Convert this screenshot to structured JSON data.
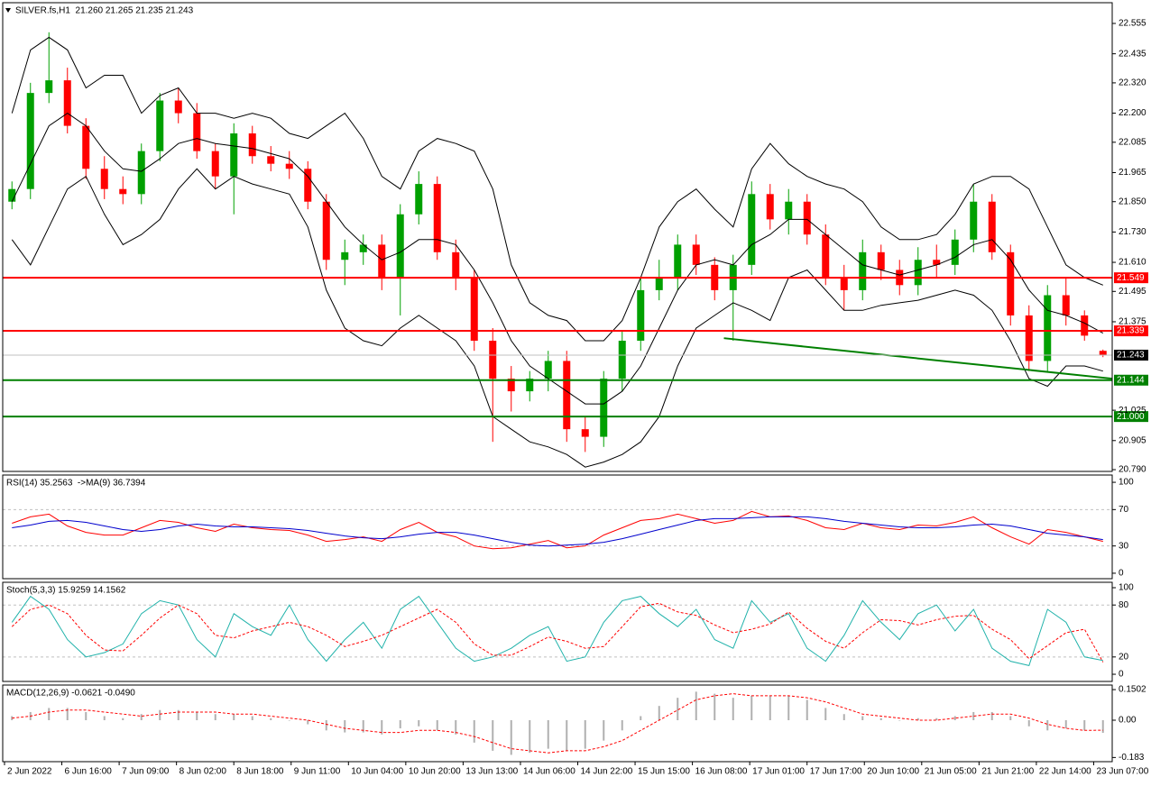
{
  "chart_data": [
    {
      "type": "candlestick",
      "title": "SILVER.fs,H1  21.260 21.265 21.235 21.243",
      "up_color": "#00a000",
      "down_color": "#ff0000",
      "open": [
        21.85,
        21.9,
        22.28,
        22.33,
        22.15,
        21.98,
        21.9,
        21.88,
        22.05,
        22.25,
        22.2,
        22.05,
        21.95,
        22.12,
        22.03,
        22.0,
        21.98,
        21.85,
        21.62,
        21.65,
        21.68,
        21.55,
        21.8,
        21.92,
        21.65,
        21.55,
        21.3,
        21.15,
        21.1,
        21.15,
        21.22,
        20.95,
        20.92,
        21.15,
        21.3,
        21.5,
        21.55,
        21.68,
        21.6,
        21.5,
        21.6,
        21.88,
        21.78,
        21.85,
        21.72,
        21.55,
        21.5,
        21.65,
        21.58,
        21.52,
        21.62,
        21.6,
        21.7,
        21.85,
        21.65,
        21.4,
        21.22,
        21.48,
        21.4,
        21.26
      ],
      "high": [
        21.93,
        22.32,
        22.52,
        22.38,
        22.18,
        22.03,
        21.95,
        22.08,
        22.28,
        22.3,
        22.24,
        22.08,
        22.16,
        22.15,
        22.07,
        22.05,
        22.01,
        21.88,
        21.7,
        21.72,
        21.72,
        21.84,
        21.97,
        21.95,
        21.7,
        21.58,
        21.35,
        21.2,
        21.18,
        21.26,
        21.26,
        21.0,
        21.18,
        21.34,
        21.55,
        21.62,
        21.72,
        21.72,
        21.63,
        21.64,
        21.93,
        21.92,
        21.9,
        21.88,
        21.76,
        21.6,
        21.7,
        21.68,
        21.62,
        21.67,
        21.68,
        21.74,
        21.92,
        21.88,
        21.68,
        21.44,
        21.52,
        21.55,
        21.42,
        21.265
      ],
      "low": [
        21.82,
        21.86,
        22.24,
        22.12,
        21.94,
        21.86,
        21.84,
        21.84,
        22.01,
        22.16,
        22.02,
        21.9,
        21.8,
        22.0,
        21.97,
        21.94,
        21.82,
        21.58,
        21.52,
        21.6,
        21.5,
        21.4,
        21.76,
        21.62,
        21.5,
        21.26,
        20.9,
        21.02,
        21.06,
        21.1,
        20.9,
        20.86,
        20.88,
        21.1,
        21.26,
        21.46,
        21.5,
        21.56,
        21.46,
        21.3,
        21.56,
        21.74,
        21.72,
        21.68,
        21.52,
        21.42,
        21.46,
        21.54,
        21.48,
        21.48,
        21.55,
        21.56,
        21.65,
        21.62,
        21.36,
        21.18,
        21.18,
        21.36,
        21.3,
        21.235
      ],
      "close": [
        21.9,
        22.28,
        22.33,
        22.15,
        21.98,
        21.9,
        21.88,
        22.05,
        22.25,
        22.2,
        22.05,
        21.95,
        22.12,
        22.03,
        22.0,
        21.98,
        21.85,
        21.62,
        21.65,
        21.68,
        21.55,
        21.8,
        21.92,
        21.65,
        21.55,
        21.3,
        21.15,
        21.1,
        21.15,
        21.22,
        20.95,
        20.92,
        21.15,
        21.3,
        21.5,
        21.55,
        21.68,
        21.6,
        21.5,
        21.6,
        21.88,
        21.78,
        21.85,
        21.72,
        21.55,
        21.5,
        21.65,
        21.58,
        21.52,
        21.62,
        21.6,
        21.7,
        21.85,
        21.65,
        21.4,
        21.22,
        21.48,
        21.4,
        21.32,
        21.243
      ],
      "series": [
        {
          "color": "#000000",
          "values": [
            22.2,
            22.45,
            22.5,
            22.45,
            22.3,
            22.35,
            22.35,
            22.2,
            22.27,
            22.3,
            22.2,
            22.2,
            22.18,
            22.2,
            22.18,
            22.12,
            22.1,
            22.15,
            22.2,
            22.1,
            21.95,
            21.9,
            22.05,
            22.1,
            22.08,
            22.05,
            21.9,
            21.6,
            21.45,
            21.4,
            21.38,
            21.3,
            21.3,
            21.38,
            21.55,
            21.75,
            21.85,
            21.9,
            21.82,
            21.75,
            21.98,
            22.08,
            22.0,
            21.95,
            21.92,
            21.9,
            21.85,
            21.75,
            21.7,
            21.7,
            21.72,
            21.8,
            21.92,
            21.95,
            21.95,
            21.9,
            21.75,
            21.6,
            21.55,
            21.52
          ]
        },
        {
          "color": "#000000",
          "values": [
            21.85,
            22.0,
            22.15,
            22.2,
            22.15,
            22.05,
            21.98,
            21.97,
            22.02,
            22.08,
            22.1,
            22.08,
            22.07,
            22.06,
            22.04,
            22.02,
            21.95,
            21.85,
            21.75,
            21.68,
            21.62,
            21.65,
            21.7,
            21.7,
            21.68,
            21.58,
            21.45,
            21.3,
            21.2,
            21.15,
            21.1,
            21.05,
            21.05,
            21.1,
            21.2,
            21.35,
            21.5,
            21.6,
            21.62,
            21.6,
            21.68,
            21.72,
            21.78,
            21.78,
            21.72,
            21.66,
            21.6,
            21.58,
            21.56,
            21.58,
            21.6,
            21.63,
            21.68,
            21.7,
            21.62,
            21.5,
            21.42,
            21.4,
            21.37,
            21.33
          ]
        },
        {
          "color": "#000000",
          "values": [
            21.7,
            21.6,
            21.75,
            21.9,
            21.95,
            21.8,
            21.68,
            21.72,
            21.78,
            21.9,
            21.98,
            21.9,
            21.95,
            21.92,
            21.9,
            21.88,
            21.75,
            21.5,
            21.35,
            21.3,
            21.28,
            21.35,
            21.4,
            21.35,
            21.3,
            21.2,
            21.0,
            20.95,
            20.9,
            20.88,
            20.85,
            20.8,
            20.82,
            20.85,
            20.9,
            21.0,
            21.2,
            21.35,
            21.4,
            21.45,
            21.42,
            21.38,
            21.55,
            21.58,
            21.5,
            21.42,
            21.42,
            21.44,
            21.45,
            21.46,
            21.48,
            21.5,
            21.48,
            21.42,
            21.3,
            21.15,
            21.12,
            21.2,
            21.2,
            21.18
          ]
        }
      ],
      "hlines": [
        {
          "value": 21.549,
          "color": "#ff0000"
        },
        {
          "value": 21.339,
          "color": "#ff0000"
        },
        {
          "value": 21.144,
          "color": "#008000"
        },
        {
          "value": {
            "value": 21.0,
            "label": "21.000"
          },
          "color": "#008000"
        }
      ],
      "trendline": {
        "x": [
          38.5,
          59.5
        ],
        "y": [
          21.31,
          21.15
        ],
        "color": "#008000"
      },
      "last": 21.243,
      "ylim": [
        20.783,
        22.637
      ],
      "yticks": [
        22.555,
        22.435,
        {
          "value": 22.32,
          "label": "22.320"
        },
        {
          "value": 22.2,
          "label": "22.200"
        },
        22.085,
        21.965,
        {
          "value": 21.85,
          "label": "21.850"
        },
        {
          "value": 21.73,
          "label": "21.730"
        },
        {
          "value": 21.61,
          "label": "21.610"
        },
        21.495,
        21.375,
        {
          "value": 21.025,
          "label": "21.025"
        },
        20.905,
        {
          "value": 20.79,
          "label": "20.790"
        }
      ]
    },
    {
      "type": "line",
      "title": "RSI(14) 35.2563  ->MA(9) 36.7394",
      "series": [
        {
          "color": "#ff0000",
          "values": [
            55,
            62,
            65,
            52,
            45,
            42,
            42,
            50,
            58,
            56,
            50,
            46,
            54,
            50,
            48,
            47,
            42,
            35,
            37,
            40,
            35,
            48,
            56,
            45,
            40,
            30,
            27,
            28,
            32,
            36,
            28,
            30,
            42,
            50,
            58,
            60,
            65,
            60,
            55,
            58,
            68,
            62,
            63,
            58,
            50,
            48,
            55,
            50,
            48,
            53,
            52,
            56,
            62,
            50,
            40,
            32,
            48,
            45,
            40,
            35
          ]
        },
        {
          "color": "#0000cd",
          "values": [
            50,
            53,
            57,
            58,
            56,
            52,
            48,
            46,
            48,
            52,
            54,
            52,
            51,
            51,
            50,
            49,
            47,
            44,
            41,
            39,
            38,
            40,
            43,
            45,
            45,
            42,
            38,
            34,
            31,
            30,
            31,
            32,
            34,
            38,
            43,
            48,
            53,
            58,
            60,
            60,
            61,
            62,
            62,
            62,
            60,
            57,
            55,
            53,
            51,
            50,
            50,
            51,
            53,
            54,
            52,
            48,
            44,
            42,
            40,
            37
          ]
        }
      ],
      "levels": [
        70,
        30
      ],
      "ylim": [
        -6,
        108
      ],
      "yticks": [
        100,
        70,
        30,
        0
      ]
    },
    {
      "type": "line",
      "title": "Stoch(5,3,3) 15.9259 14.1562",
      "series": [
        {
          "color": "#20b2aa",
          "values": [
            60,
            90,
            75,
            40,
            20,
            25,
            35,
            70,
            85,
            80,
            40,
            20,
            70,
            55,
            45,
            80,
            40,
            15,
            40,
            60,
            30,
            75,
            90,
            60,
            30,
            15,
            20,
            30,
            45,
            55,
            15,
            20,
            60,
            85,
            90,
            70,
            55,
            75,
            40,
            30,
            85,
            60,
            70,
            30,
            15,
            45,
            85,
            60,
            40,
            70,
            80,
            50,
            75,
            30,
            15,
            10,
            75,
            60,
            20,
            16
          ]
        },
        {
          "color": "#ff0000",
          "dash": true,
          "values": [
            55,
            75,
            80,
            70,
            45,
            28,
            27,
            45,
            65,
            80,
            70,
            45,
            42,
            50,
            55,
            60,
            55,
            45,
            32,
            38,
            45,
            55,
            65,
            75,
            60,
            35,
            22,
            22,
            32,
            43,
            38,
            30,
            32,
            55,
            78,
            82,
            72,
            68,
            57,
            48,
            52,
            58,
            72,
            53,
            38,
            30,
            48,
            63,
            62,
            57,
            63,
            67,
            68,
            52,
            40,
            18,
            33,
            48,
            52,
            14
          ]
        }
      ],
      "levels": [
        80,
        20
      ],
      "ylim": [
        -8.3,
        106.25
      ],
      "yticks": [
        100,
        80,
        20,
        0
      ]
    },
    {
      "type": "macd",
      "title": "MACD(12,26,9) -0.0621 -0.0490",
      "histogram": {
        "color": "#b0b0b0",
        "values": [
          0.02,
          0.04,
          0.06,
          0.06,
          0.04,
          0.02,
          0.01,
          0.03,
          0.05,
          0.05,
          0.04,
          0.03,
          0.03,
          0.02,
          0.01,
          0.0,
          -0.02,
          -0.05,
          -0.06,
          -0.06,
          -0.07,
          -0.04,
          -0.03,
          -0.05,
          -0.07,
          -0.11,
          -0.15,
          -0.17,
          -0.16,
          -0.14,
          -0.15,
          -0.14,
          -0.1,
          -0.05,
          0.02,
          0.07,
          0.11,
          0.14,
          0.13,
          0.11,
          0.12,
          0.12,
          0.12,
          0.1,
          0.06,
          0.03,
          0.02,
          0.01,
          0.0,
          0.01,
          0.01,
          0.02,
          0.04,
          0.04,
          0.02,
          -0.03,
          -0.05,
          -0.04,
          -0.05,
          -0.062
        ]
      },
      "series": [
        {
          "color": "#ff0000",
          "dash": true,
          "values": [
            0.01,
            0.02,
            0.04,
            0.05,
            0.05,
            0.04,
            0.03,
            0.02,
            0.03,
            0.04,
            0.04,
            0.04,
            0.03,
            0.03,
            0.02,
            0.01,
            0.0,
            -0.02,
            -0.04,
            -0.05,
            -0.06,
            -0.06,
            -0.05,
            -0.05,
            -0.06,
            -0.08,
            -0.11,
            -0.14,
            -0.15,
            -0.16,
            -0.15,
            -0.15,
            -0.13,
            -0.1,
            -0.05,
            0.0,
            0.05,
            0.1,
            0.12,
            0.13,
            0.12,
            0.12,
            0.12,
            0.11,
            0.09,
            0.06,
            0.03,
            0.02,
            0.01,
            0.0,
            0.0,
            0.01,
            0.02,
            0.03,
            0.03,
            0.01,
            -0.02,
            -0.04,
            -0.05,
            -0.049
          ]
        }
      ],
      "ylim": [
        -0.2035,
        0.1726
      ],
      "yticks": [
        0.1502,
        {
          "value": 0,
          "label": "0.00"
        },
        -0.183
      ],
      "xticks": [
        {
          "value": 0,
          "label": "2 Jun 2022"
        },
        {
          "value": 3.1,
          "label": "6 Jun 16:00"
        },
        {
          "value": 6.2,
          "label": "7 Jun 09:00"
        },
        {
          "value": 9.3,
          "label": "8 Jun 02:00"
        },
        {
          "value": 12.4,
          "label": "8 Jun 18:00"
        },
        {
          "value": 15.5,
          "label": "9 Jun 11:00"
        },
        {
          "value": 18.6,
          "label": "10 Jun 04:00"
        },
        {
          "value": 21.7,
          "label": "10 Jun 20:00"
        },
        {
          "value": 24.8,
          "label": "13 Jun 13:00"
        },
        {
          "value": 27.9,
          "label": "14 Jun 06:00"
        },
        {
          "value": 31,
          "label": "14 Jun 22:00"
        },
        {
          "value": 34.1,
          "label": "15 Jun 15:00"
        },
        {
          "value": 37.2,
          "label": "16 Jun 08:00"
        },
        {
          "value": 40.3,
          "label": "17 Jun 01:00"
        },
        {
          "value": 43.4,
          "label": "17 Jun 17:00"
        },
        {
          "value": 46.5,
          "label": "20 Jun 10:00"
        },
        {
          "value": 49.6,
          "label": "21 Jun 05:00"
        },
        {
          "value": 52.7,
          "label": "21 Jun 21:00"
        },
        {
          "value": 55.8,
          "label": "22 Jun 14:00"
        },
        {
          "value": 58.9,
          "label": "23 Jun 07:00"
        }
      ]
    }
  ]
}
